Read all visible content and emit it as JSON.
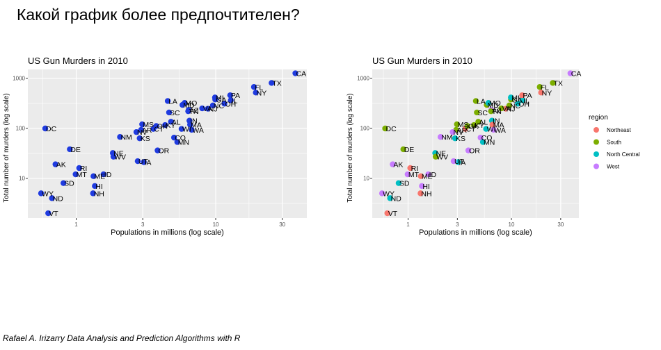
{
  "slide": {
    "title": "Какой график более предпочтителен?",
    "footer": "Rafael A. Irizarry Data Analysis and Prediction Algorithms with R"
  },
  "colors": {
    "panel_bg": "#ebebeb",
    "grid": "#ffffff",
    "single": "#1f3be0",
    "Northeast": "#f8766d",
    "South": "#7cae00",
    "North Central": "#00bfc4",
    "West": "#c77cff"
  },
  "chart_data": [
    {
      "type": "scatter",
      "title": "US Gun Murders in 2010",
      "xlabel": "Populations in millions (log scale)",
      "ylabel": "Total number of murders (log scale)",
      "x_scale": "log10",
      "y_scale": "log10",
      "xlim": [
        0.45,
        45
      ],
      "ylim": [
        1.6,
        1500
      ],
      "x_ticks": [
        1,
        3,
        10,
        30
      ],
      "x_tick_labels": [
        "1",
        "3",
        "10",
        "30"
      ],
      "y_ticks": [
        10,
        100,
        1000
      ],
      "y_tick_labels": [
        "10",
        "100",
        "1000"
      ],
      "grid": true,
      "legend": "none",
      "color_by_region": false
    },
    {
      "type": "scatter",
      "title": "US Gun Murders in 2010",
      "xlabel": "Populations in millions (log scale)",
      "ylabel": "Total number of murders (log scale)",
      "x_scale": "log10",
      "y_scale": "log10",
      "xlim": [
        0.45,
        45
      ],
      "ylim": [
        1.6,
        1500
      ],
      "x_ticks": [
        1,
        3,
        10,
        30
      ],
      "x_tick_labels": [
        "1",
        "3",
        "10",
        "30"
      ],
      "y_ticks": [
        10,
        100,
        1000
      ],
      "y_tick_labels": [
        "10",
        "100",
        "1000"
      ],
      "grid": true,
      "legend": "right",
      "legend_title": "region",
      "legend_entries": [
        "Northeast",
        "South",
        "North Central",
        "West"
      ],
      "color_by_region": true
    }
  ],
  "points": [
    {
      "abb": "AL",
      "region": "South",
      "pop": 4.78,
      "murders": 135
    },
    {
      "abb": "AK",
      "region": "West",
      "pop": 0.71,
      "murders": 19
    },
    {
      "abb": "AZ",
      "region": "West",
      "pop": 6.39,
      "murders": 232
    },
    {
      "abb": "AR",
      "region": "South",
      "pop": 2.92,
      "murders": 93
    },
    {
      "abb": "CA",
      "region": "West",
      "pop": 37.25,
      "murders": 1257
    },
    {
      "abb": "CO",
      "region": "West",
      "pop": 5.03,
      "murders": 65
    },
    {
      "abb": "CT",
      "region": "Northeast",
      "pop": 3.57,
      "murders": 97
    },
    {
      "abb": "DE",
      "region": "South",
      "pop": 0.9,
      "murders": 38
    },
    {
      "abb": "DC",
      "region": "South",
      "pop": 0.6,
      "murders": 99
    },
    {
      "abb": "FL",
      "region": "South",
      "pop": 18.8,
      "murders": 669
    },
    {
      "abb": "GA",
      "region": "South",
      "pop": 9.92,
      "murders": 376
    },
    {
      "abb": "HI",
      "region": "West",
      "pop": 1.36,
      "murders": 7
    },
    {
      "abb": "ID",
      "region": "West",
      "pop": 1.57,
      "murders": 12
    },
    {
      "abb": "IL",
      "region": "North Central",
      "pop": 12.83,
      "murders": 364
    },
    {
      "abb": "IN",
      "region": "North Central",
      "pop": 6.48,
      "murders": 142
    },
    {
      "abb": "IA",
      "region": "North Central",
      "pop": 3.05,
      "murders": 21
    },
    {
      "abb": "KS",
      "region": "North Central",
      "pop": 2.85,
      "murders": 63
    },
    {
      "abb": "KY",
      "region": "South",
      "pop": 4.34,
      "murders": 116
    },
    {
      "abb": "LA",
      "region": "South",
      "pop": 4.53,
      "murders": 351
    },
    {
      "abb": "ME",
      "region": "Northeast",
      "pop": 1.33,
      "murders": 11
    },
    {
      "abb": "MD",
      "region": "South",
      "pop": 5.77,
      "murders": 293
    },
    {
      "abb": "MA",
      "region": "Northeast",
      "pop": 6.55,
      "murders": 118
    },
    {
      "abb": "MI",
      "region": "North Central",
      "pop": 9.88,
      "murders": 413
    },
    {
      "abb": "MN",
      "region": "North Central",
      "pop": 5.3,
      "murders": 53
    },
    {
      "abb": "MS",
      "region": "South",
      "pop": 2.97,
      "murders": 120
    },
    {
      "abb": "MO",
      "region": "North Central",
      "pop": 5.99,
      "murders": 321
    },
    {
      "abb": "MT",
      "region": "West",
      "pop": 0.99,
      "murders": 12
    },
    {
      "abb": "NE",
      "region": "North Central",
      "pop": 1.83,
      "murders": 32
    },
    {
      "abb": "NV",
      "region": "West",
      "pop": 2.7,
      "murders": 84
    },
    {
      "abb": "NH",
      "region": "Northeast",
      "pop": 1.32,
      "murders": 5
    },
    {
      "abb": "NJ",
      "region": "Northeast",
      "pop": 8.79,
      "murders": 246
    },
    {
      "abb": "NM",
      "region": "West",
      "pop": 2.06,
      "murders": 67
    },
    {
      "abb": "NY",
      "region": "Northeast",
      "pop": 19.38,
      "murders": 517
    },
    {
      "abb": "NC",
      "region": "South",
      "pop": 9.54,
      "murders": 286
    },
    {
      "abb": "ND",
      "region": "North Central",
      "pop": 0.67,
      "murders": 4
    },
    {
      "abb": "OH",
      "region": "North Central",
      "pop": 11.54,
      "murders": 310
    },
    {
      "abb": "OK",
      "region": "South",
      "pop": 3.75,
      "murders": 111
    },
    {
      "abb": "OR",
      "region": "West",
      "pop": 3.83,
      "murders": 36
    },
    {
      "abb": "PA",
      "region": "Northeast",
      "pop": 12.7,
      "murders": 457
    },
    {
      "abb": "RI",
      "region": "Northeast",
      "pop": 1.05,
      "murders": 16
    },
    {
      "abb": "SC",
      "region": "South",
      "pop": 4.63,
      "murders": 207
    },
    {
      "abb": "SD",
      "region": "North Central",
      "pop": 0.81,
      "murders": 8
    },
    {
      "abb": "TN",
      "region": "South",
      "pop": 6.35,
      "murders": 219
    },
    {
      "abb": "TX",
      "region": "South",
      "pop": 25.15,
      "murders": 805
    },
    {
      "abb": "UT",
      "region": "West",
      "pop": 2.76,
      "murders": 22
    },
    {
      "abb": "VT",
      "region": "Northeast",
      "pop": 0.63,
      "murders": 2
    },
    {
      "abb": "VA",
      "region": "South",
      "pop": 8.0,
      "murders": 250
    },
    {
      "abb": "WA",
      "region": "West",
      "pop": 6.72,
      "murders": 93
    },
    {
      "abb": "WV",
      "region": "South",
      "pop": 1.85,
      "murders": 27
    },
    {
      "abb": "WI",
      "region": "North Central",
      "pop": 5.69,
      "murders": 97
    },
    {
      "abb": "WY",
      "region": "West",
      "pop": 0.56,
      "murders": 5
    }
  ]
}
